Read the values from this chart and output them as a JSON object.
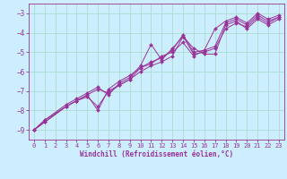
{
  "xlabel": "Windchill (Refroidissement éolien,°C)",
  "bg_color": "#cceeff",
  "grid_color": "#aaddcc",
  "line_color": "#993399",
  "xlim": [
    -0.5,
    23.5
  ],
  "ylim": [
    -9.5,
    -2.5
  ],
  "yticks": [
    -9,
    -8,
    -7,
    -6,
    -5,
    -4,
    -3
  ],
  "xticks": [
    0,
    1,
    2,
    3,
    4,
    5,
    6,
    7,
    8,
    9,
    10,
    11,
    12,
    13,
    14,
    15,
    16,
    17,
    18,
    19,
    20,
    21,
    22,
    23
  ],
  "series": [
    {
      "x": [
        0,
        1,
        3,
        4,
        5,
        6,
        7,
        8,
        9,
        10,
        11,
        12,
        13,
        14,
        15,
        16,
        17,
        18,
        19,
        20,
        21,
        22,
        23
      ],
      "y": [
        -9.0,
        -8.6,
        -7.8,
        -7.5,
        -7.3,
        -7.8,
        -7.0,
        -6.7,
        -6.4,
        -6.0,
        -5.7,
        -5.5,
        -5.2,
        -4.2,
        -5.1,
        -5.0,
        -4.8,
        -3.8,
        -3.5,
        -3.7,
        -3.2,
        -3.5,
        -3.2
      ]
    },
    {
      "x": [
        0,
        1,
        3,
        4,
        5,
        6,
        7,
        8,
        9,
        10,
        11,
        12,
        13,
        14,
        15,
        16,
        17,
        18,
        19,
        20,
        21,
        22,
        23
      ],
      "y": [
        -9.0,
        -8.6,
        -7.8,
        -7.5,
        -7.2,
        -8.0,
        -6.9,
        -6.5,
        -6.2,
        -5.8,
        -5.6,
        -5.2,
        -5.0,
        -4.5,
        -5.2,
        -4.9,
        -4.7,
        -3.5,
        -3.3,
        -3.6,
        -3.1,
        -3.4,
        -3.2
      ]
    },
    {
      "x": [
        0,
        1,
        3,
        4,
        5,
        6,
        7,
        8,
        9,
        10,
        11,
        12,
        13,
        14,
        15,
        16,
        17,
        18,
        19,
        20,
        21,
        22,
        23
      ],
      "y": [
        -9.0,
        -8.5,
        -7.7,
        -7.4,
        -7.1,
        -6.8,
        -7.2,
        -6.6,
        -6.3,
        -5.7,
        -4.6,
        -5.4,
        -4.8,
        -4.2,
        -4.8,
        -5.1,
        -5.1,
        -3.6,
        -3.4,
        -3.8,
        -3.3,
        -3.6,
        -3.3
      ]
    },
    {
      "x": [
        0,
        1,
        3,
        4,
        5,
        6,
        7,
        8,
        9,
        10,
        11,
        12,
        13,
        14,
        15,
        16,
        17,
        18,
        19,
        20,
        21,
        22,
        23
      ],
      "y": [
        -9.0,
        -8.5,
        -7.8,
        -7.5,
        -7.2,
        -6.9,
        -7.1,
        -6.7,
        -6.4,
        -5.8,
        -5.5,
        -5.3,
        -4.9,
        -4.1,
        -5.0,
        -4.9,
        -3.8,
        -3.4,
        -3.2,
        -3.5,
        -3.0,
        -3.3,
        -3.1
      ]
    }
  ],
  "tick_fontsize": 5.0,
  "xlabel_fontsize": 5.5,
  "marker_size": 2.0,
  "linewidth": 0.7
}
